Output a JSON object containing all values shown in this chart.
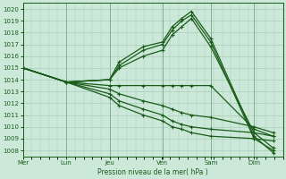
{
  "xlabel": "Pression niveau de la mer( hPa )",
  "ylim": [
    1007.5,
    1020.5
  ],
  "xlim": [
    0,
    5.4
  ],
  "yticks": [
    1008,
    1009,
    1010,
    1011,
    1012,
    1013,
    1014,
    1015,
    1016,
    1017,
    1018,
    1019,
    1020
  ],
  "day_labels": [
    "Mer",
    "Lun",
    "Jeu",
    "Ven",
    "Sam",
    "Dim"
  ],
  "day_positions": [
    0.0,
    0.9,
    1.8,
    2.9,
    3.9,
    4.8
  ],
  "bg_color": "#cce8d8",
  "grid_color": "#a8ccb8",
  "line_color": "#1a5c1a",
  "lines": [
    {
      "x": [
        0.0,
        0.9,
        1.8,
        2.0,
        2.5,
        2.9,
        3.1,
        3.3,
        3.5,
        3.9,
        4.8,
        5.2
      ],
      "y": [
        1015.0,
        1013.8,
        1014.0,
        1015.5,
        1016.8,
        1017.2,
        1018.5,
        1019.2,
        1019.8,
        1017.5,
        1009.2,
        1007.8
      ]
    },
    {
      "x": [
        0.0,
        0.9,
        1.8,
        2.0,
        2.5,
        2.9,
        3.1,
        3.3,
        3.5,
        3.9,
        4.8,
        5.2
      ],
      "y": [
        1015.0,
        1013.8,
        1014.0,
        1015.2,
        1016.5,
        1017.0,
        1018.2,
        1019.0,
        1019.5,
        1017.2,
        1009.0,
        1008.0
      ]
    },
    {
      "x": [
        0.0,
        0.9,
        1.8,
        2.0,
        2.5,
        2.9,
        3.1,
        3.3,
        3.5,
        3.9,
        4.8,
        5.2
      ],
      "y": [
        1015.0,
        1013.8,
        1014.0,
        1015.0,
        1016.0,
        1016.5,
        1017.8,
        1018.5,
        1019.2,
        1016.8,
        1009.5,
        1008.2
      ]
    },
    {
      "x": [
        0.0,
        0.9,
        1.8,
        2.0,
        2.5,
        2.9,
        3.1,
        3.3,
        3.5,
        3.9,
        4.8,
        5.2
      ],
      "y": [
        1015.0,
        1013.8,
        1013.5,
        1013.5,
        1013.5,
        1013.5,
        1013.5,
        1013.5,
        1013.5,
        1013.5,
        1009.8,
        1009.2
      ]
    },
    {
      "x": [
        0.0,
        0.9,
        1.8,
        2.0,
        2.5,
        2.9,
        3.1,
        3.3,
        3.5,
        3.9,
        4.8,
        5.2
      ],
      "y": [
        1015.0,
        1013.8,
        1013.2,
        1012.8,
        1012.2,
        1011.8,
        1011.5,
        1011.2,
        1011.0,
        1010.8,
        1010.0,
        1009.5
      ]
    },
    {
      "x": [
        0.0,
        0.9,
        1.8,
        2.0,
        2.5,
        2.9,
        3.1,
        3.3,
        3.5,
        3.9,
        4.8,
        5.2
      ],
      "y": [
        1015.0,
        1013.8,
        1012.8,
        1012.2,
        1011.5,
        1011.0,
        1010.5,
        1010.2,
        1010.0,
        1009.8,
        1009.5,
        1009.2
      ]
    },
    {
      "x": [
        0.0,
        0.9,
        1.8,
        2.0,
        2.5,
        2.9,
        3.1,
        3.3,
        3.5,
        3.9,
        4.8,
        5.2
      ],
      "y": [
        1015.0,
        1013.8,
        1012.5,
        1011.8,
        1011.0,
        1010.5,
        1010.0,
        1009.8,
        1009.5,
        1009.2,
        1009.0,
        1008.8
      ]
    }
  ]
}
